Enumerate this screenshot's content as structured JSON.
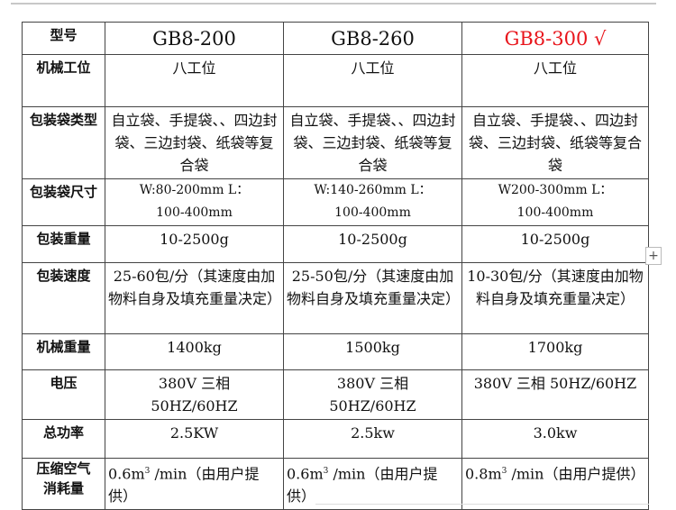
{
  "header": {
    "label": "型号",
    "models": [
      "GB8-200",
      "GB8-260",
      "GB8-300 √"
    ],
    "highlight_color": "#e8141b"
  },
  "rows": [
    {
      "label": "机械工位",
      "values": [
        "八工位",
        "八工位",
        "八工位"
      ]
    },
    {
      "label": "包装袋类型",
      "values": [
        "自立袋、手提袋、、四边封袋、三边封袋、纸袋等复合袋",
        "自立袋、手提袋、、四边封袋、三边封袋、纸袋等复合袋",
        "自立袋、手提袋、、四边封袋、三边封袋、纸袋等复合袋"
      ]
    },
    {
      "label": "包装袋尺寸",
      "values": [
        "W:80-200mm L：100-400mm",
        "W:140-260mm L：100-400mm",
        "W200-300mm L：100-400mm"
      ]
    },
    {
      "label": "包装重量",
      "values": [
        "10-2500g",
        "10-2500g",
        "10-2500g"
      ]
    },
    {
      "label": "包装速度",
      "values": [
        "25-60包/分（其速度由加物料自身及填充重量决定）",
        "25-50包/分（其速度由加物料自身及填充重量决定）",
        "10-30包/分（其速度由加物料自身及填充重量决定）"
      ]
    },
    {
      "label": "机械重量",
      "values": [
        "1400kg",
        "1500kg",
        "1700kg"
      ]
    },
    {
      "label": "电压",
      "values": [
        "380V 三相 50HZ/60HZ",
        "380V 三相 50HZ/60HZ",
        "380V 三相 50HZ/60HZ"
      ]
    },
    {
      "label": "总功率",
      "values": [
        "2.5KW",
        "2.5kw",
        "3.0kw"
      ]
    }
  ],
  "air": {
    "label": "压缩空气消耗量",
    "values": [
      "0.6m",
      "0.6m",
      "0.8m"
    ],
    "sup": "3",
    "suffix": "/min（由用户提供）"
  },
  "plus_label": "+"
}
